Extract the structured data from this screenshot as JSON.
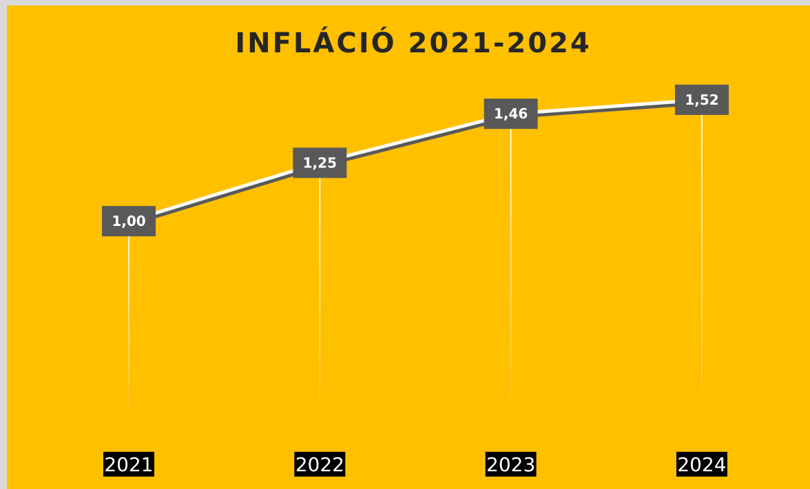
{
  "colors": {
    "background": "#ffc000",
    "line": "#ffffff",
    "line_shadow": "#595959",
    "label_box": "#595959",
    "label_text": "#ffffff",
    "tick_box": "#000000",
    "title": "#262626"
  },
  "chart_data": {
    "type": "line",
    "title": "INFLÁCIÓ 2021-2024",
    "xlabel": "",
    "ylabel": "",
    "categories": [
      "2021",
      "2022",
      "2023",
      "2024"
    ],
    "values": [
      1.0,
      1.25,
      1.46,
      1.52
    ],
    "data_labels": [
      "1,00",
      "1,25",
      "1,46",
      "1,52"
    ],
    "ylim": [
      0,
      1.8
    ],
    "grid": false,
    "drop_lines": true,
    "legend": "none"
  }
}
